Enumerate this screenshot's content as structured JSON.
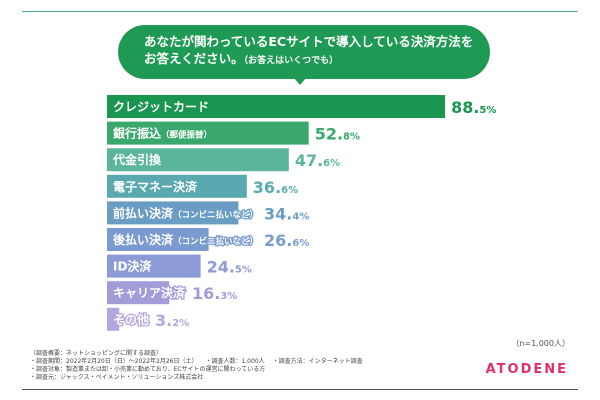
{
  "title": {
    "main": "あなたが関わっているECサイトで導入している決済方法を",
    "line2": "お答えください。",
    "note": "（お答えはいくつでも）"
  },
  "chart_data": {
    "type": "bar",
    "orientation": "horizontal",
    "unit": "%",
    "xlim": [
      0,
      100
    ],
    "categories": [
      {
        "label": "クレジットカード",
        "note": ""
      },
      {
        "label": "銀行振込",
        "note": "（郵便振替）"
      },
      {
        "label": "代金引換",
        "note": ""
      },
      {
        "label": "電子マネー決済",
        "note": ""
      },
      {
        "label": "前払い決済",
        "note": "（コンビニ払いなど）"
      },
      {
        "label": "後払い決済",
        "note": "（コンビニ払いなど）"
      },
      {
        "label": "ID決済",
        "note": ""
      },
      {
        "label": "キャリア決済",
        "note": ""
      },
      {
        "label": "その他",
        "note": ""
      }
    ],
    "values": [
      88.5,
      52.8,
      47.6,
      36.6,
      34.4,
      26.6,
      24.5,
      16.3,
      3.2
    ],
    "colors": [
      "#1a9650",
      "#3aa86c",
      "#5bb59a",
      "#5aa9b0",
      "#6a9dc4",
      "#7b9bd0",
      "#8c9bd5",
      "#a29cd8",
      "#b4a6dd"
    ]
  },
  "sample": "（n=1,000人）",
  "footer": {
    "heading": "（調査概要：ネットショッピングに関する調査）",
    "period": "・調査期間：2022年2月20日（日）～2022年2月26日（土）",
    "count": "・調査人数：1,000人",
    "method": "・調査方法：インターネット調査",
    "target": "・調査対象：製造業または卸・小売業に勤めており、ECサイトの運営に関わっている方",
    "source": "・調査元：ジャックス・ペイメント・ソリューションズ株式会社"
  },
  "logo": "ATODENE"
}
